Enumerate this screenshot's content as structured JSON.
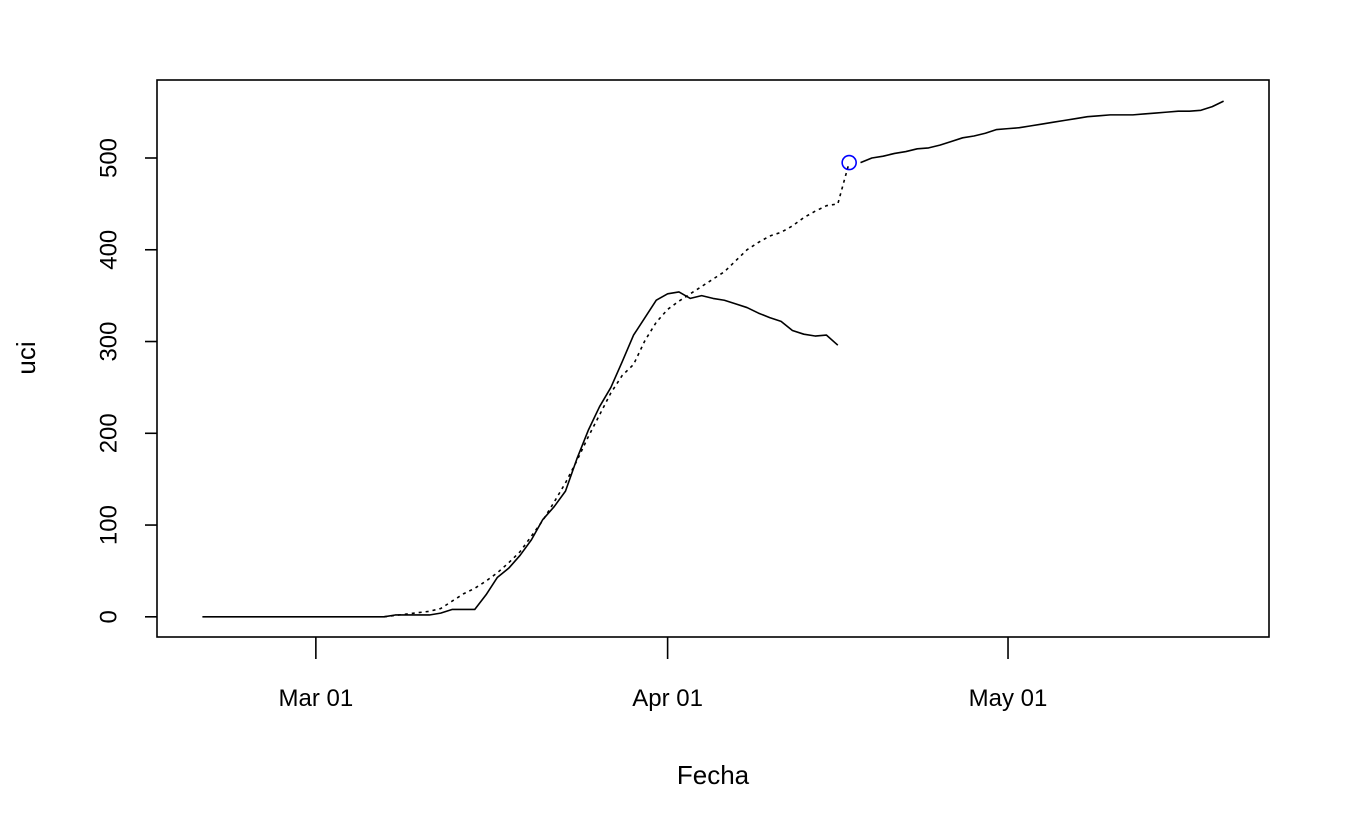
{
  "chart_data": {
    "type": "line",
    "title": "",
    "xlabel": "Fecha",
    "ylabel": "uci",
    "x_ticks": [
      "Mar 01",
      "Apr 01",
      "May 01"
    ],
    "x_tick_dates": [
      "2020-03-01",
      "2020-04-01",
      "2020-05-01"
    ],
    "y_ticks": [
      0,
      100,
      200,
      300,
      400,
      500
    ],
    "xlim": [
      "2020-02-16",
      "2020-05-24"
    ],
    "ylim": [
      -22,
      585
    ],
    "grid": false,
    "legend": "none",
    "series": [
      {
        "style": "solid",
        "color": "#000000",
        "points": [
          [
            "2020-02-20",
            0
          ],
          [
            "2020-03-07",
            0
          ],
          [
            "2020-03-08",
            2
          ],
          [
            "2020-03-11",
            2
          ],
          [
            "2020-03-12",
            4
          ],
          [
            "2020-03-13",
            8
          ],
          [
            "2020-03-15",
            8
          ],
          [
            "2020-03-16",
            24
          ],
          [
            "2020-03-17",
            43
          ],
          [
            "2020-03-18",
            53
          ],
          [
            "2020-03-19",
            67
          ],
          [
            "2020-03-20",
            84
          ],
          [
            "2020-03-21",
            106
          ],
          [
            "2020-03-22",
            120
          ],
          [
            "2020-03-23",
            137
          ],
          [
            "2020-03-24",
            172
          ],
          [
            "2020-03-25",
            203
          ],
          [
            "2020-03-26",
            229
          ],
          [
            "2020-03-27",
            250
          ],
          [
            "2020-03-28",
            278
          ],
          [
            "2020-03-29",
            307
          ],
          [
            "2020-03-30",
            326
          ],
          [
            "2020-03-31",
            345
          ],
          [
            "2020-04-01",
            352
          ],
          [
            "2020-04-02",
            354
          ],
          [
            "2020-04-03",
            347
          ],
          [
            "2020-04-04",
            350
          ],
          [
            "2020-04-05",
            347
          ],
          [
            "2020-04-06",
            345
          ],
          [
            "2020-04-07",
            341
          ],
          [
            "2020-04-08",
            337
          ],
          [
            "2020-04-09",
            331
          ],
          [
            "2020-04-10",
            326
          ],
          [
            "2020-04-11",
            322
          ],
          [
            "2020-04-12",
            312
          ],
          [
            "2020-04-13",
            308
          ],
          [
            "2020-04-14",
            306
          ],
          [
            "2020-04-15",
            307
          ],
          [
            "2020-04-16",
            296
          ]
        ]
      },
      {
        "style": "dotted",
        "color": "#000000",
        "points": [
          [
            "2020-03-07",
            0
          ],
          [
            "2020-03-09",
            3
          ],
          [
            "2020-03-11",
            6
          ],
          [
            "2020-03-12",
            9
          ],
          [
            "2020-03-13",
            17
          ],
          [
            "2020-03-14",
            25
          ],
          [
            "2020-03-15",
            31
          ],
          [
            "2020-03-16",
            39
          ],
          [
            "2020-03-17",
            48
          ],
          [
            "2020-03-18",
            59
          ],
          [
            "2020-03-19",
            71
          ],
          [
            "2020-03-20",
            88
          ],
          [
            "2020-03-21",
            105
          ],
          [
            "2020-03-22",
            125
          ],
          [
            "2020-03-23",
            146
          ],
          [
            "2020-03-24",
            170
          ],
          [
            "2020-03-25",
            196
          ],
          [
            "2020-03-26",
            220
          ],
          [
            "2020-03-27",
            244
          ],
          [
            "2020-03-28",
            263
          ],
          [
            "2020-03-29",
            275
          ],
          [
            "2020-03-30",
            301
          ],
          [
            "2020-03-31",
            321
          ],
          [
            "2020-04-01",
            335
          ],
          [
            "2020-04-02",
            344
          ],
          [
            "2020-04-03",
            352
          ],
          [
            "2020-04-04",
            360
          ],
          [
            "2020-04-05",
            368
          ],
          [
            "2020-04-06",
            376
          ],
          [
            "2020-04-07",
            388
          ],
          [
            "2020-04-08",
            400
          ],
          [
            "2020-04-09",
            408
          ],
          [
            "2020-04-10",
            415
          ],
          [
            "2020-04-11",
            419
          ],
          [
            "2020-04-12",
            426
          ],
          [
            "2020-04-13",
            435
          ],
          [
            "2020-04-14",
            442
          ],
          [
            "2020-04-15",
            448
          ],
          [
            "2020-04-16",
            450
          ],
          [
            "2020-04-17",
            495
          ]
        ]
      },
      {
        "style": "solid",
        "color": "#000000",
        "points": [
          [
            "2020-04-18",
            495
          ],
          [
            "2020-04-19",
            500
          ],
          [
            "2020-04-20",
            502
          ],
          [
            "2020-04-21",
            505
          ],
          [
            "2020-04-22",
            507
          ],
          [
            "2020-04-23",
            510
          ],
          [
            "2020-04-24",
            511
          ],
          [
            "2020-04-25",
            514
          ],
          [
            "2020-04-26",
            518
          ],
          [
            "2020-04-27",
            522
          ],
          [
            "2020-04-28",
            524
          ],
          [
            "2020-04-29",
            527
          ],
          [
            "2020-04-30",
            531
          ],
          [
            "2020-05-01",
            532
          ],
          [
            "2020-05-02",
            533
          ],
          [
            "2020-05-03",
            535
          ],
          [
            "2020-05-04",
            537
          ],
          [
            "2020-05-05",
            539
          ],
          [
            "2020-05-06",
            541
          ],
          [
            "2020-05-07",
            543
          ],
          [
            "2020-05-08",
            545
          ],
          [
            "2020-05-09",
            546
          ],
          [
            "2020-05-10",
            547
          ],
          [
            "2020-05-11",
            547
          ],
          [
            "2020-05-12",
            547
          ],
          [
            "2020-05-13",
            548
          ],
          [
            "2020-05-14",
            549
          ],
          [
            "2020-05-15",
            550
          ],
          [
            "2020-05-16",
            551
          ],
          [
            "2020-05-17",
            551
          ],
          [
            "2020-05-18",
            552
          ],
          [
            "2020-05-19",
            556
          ],
          [
            "2020-05-20",
            562
          ]
        ]
      }
    ],
    "highlight_point": {
      "date": "2020-04-17",
      "value": 495,
      "shape": "circle",
      "color": "#0000ff"
    }
  }
}
